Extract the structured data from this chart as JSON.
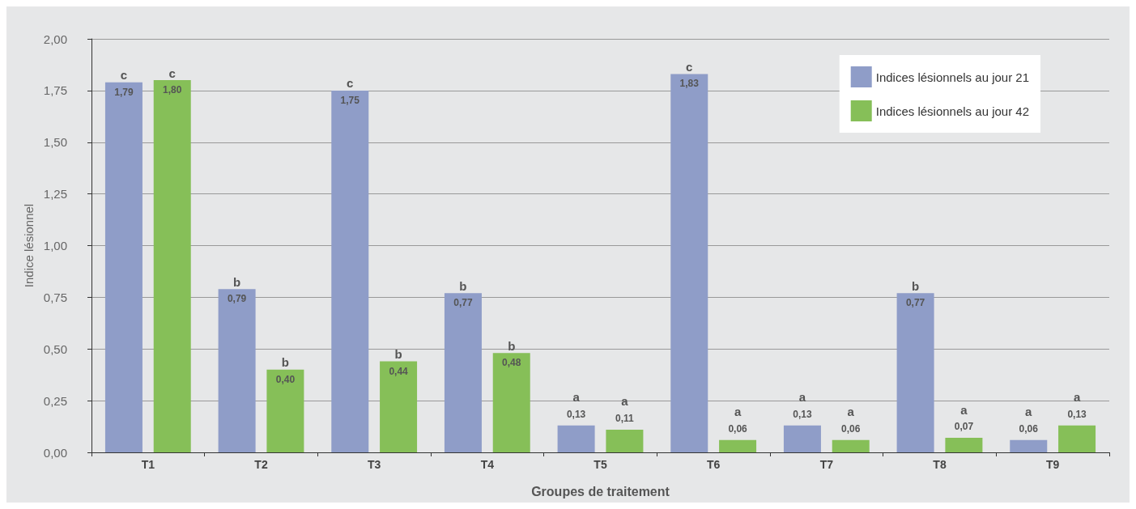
{
  "chart_data": {
    "type": "bar",
    "xlabel": "Groupes de traitement",
    "ylabel": "Indice lésionnel",
    "categories": [
      "T1",
      "T2",
      "T3",
      "T4",
      "T5",
      "T6",
      "T7",
      "T8",
      "T9"
    ],
    "series": [
      {
        "name": "Indices lésionnels au jour 21",
        "color": "#8f9dc8",
        "values": [
          1.79,
          0.79,
          1.75,
          0.77,
          0.13,
          1.83,
          0.13,
          0.77,
          0.06
        ],
        "value_labels": [
          "1,79",
          "0,79",
          "1,75",
          "0,77",
          "0,13",
          "1,83",
          "0,13",
          "0,77",
          "0,06"
        ]
      },
      {
        "name": "Indices lésionnels au jour 42",
        "color": "#86bf58",
        "values": [
          1.8,
          0.4,
          0.44,
          0.48,
          0.11,
          0.06,
          0.06,
          0.07,
          0.13
        ],
        "value_labels": [
          "1,80",
          "0,40",
          "0,44",
          "0,48",
          "0,11",
          "0,06",
          "0,06",
          "0,07",
          "0,13"
        ]
      }
    ],
    "ylim": [
      0,
      2
    ],
    "yticks": [
      {
        "value": 0,
        "label": "0,00"
      },
      {
        "value": 0.25,
        "label": "0,25"
      },
      {
        "value": 0.5,
        "label": "0,50"
      },
      {
        "value": 0.75,
        "label": "0,75"
      },
      {
        "value": 1,
        "label": "1,00"
      },
      {
        "value": 1.25,
        "label": "1,25"
      },
      {
        "value": 1.5,
        "label": "1,50"
      },
      {
        "value": 1.75,
        "label": "1,75"
      },
      {
        "value": 2,
        "label": "2,00"
      }
    ],
    "grid": "y",
    "legend": "top right",
    "annotations": [
      "c",
      "c",
      "b",
      "b",
      "c",
      "b",
      "b",
      "b",
      "a",
      "a",
      "c",
      "a",
      "a",
      "a",
      "b",
      "a",
      "a",
      "a"
    ]
  }
}
